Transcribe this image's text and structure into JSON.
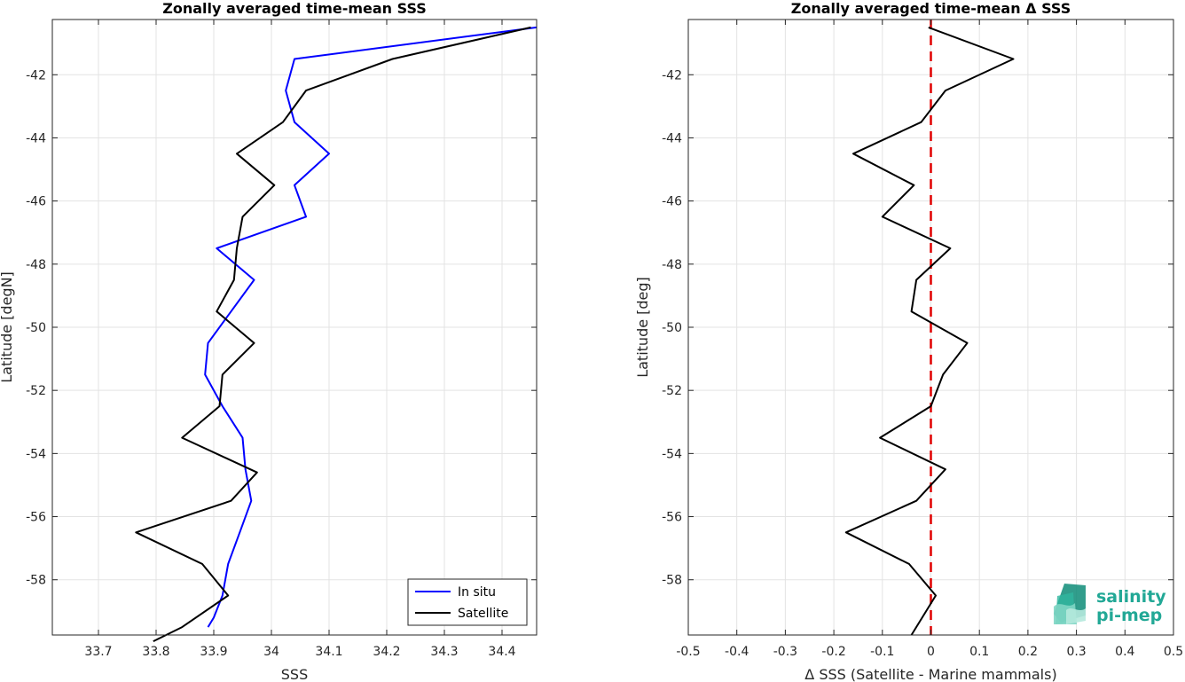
{
  "chart_data": [
    {
      "type": "line",
      "title": "Zonally averaged time-mean SSS",
      "xlabel": "SSS",
      "ylabel": "Latitude [degN]",
      "xlim": [
        33.62,
        34.46
      ],
      "ylim": [
        -59.75,
        -40.25
      ],
      "xticks": [
        33.7,
        33.8,
        33.9,
        34.0,
        34.1,
        34.2,
        34.3,
        34.4
      ],
      "xtick_labels": [
        "33.7",
        "33.8",
        "33.9",
        "34",
        "34.1",
        "34.2",
        "34.3",
        "34.4"
      ],
      "yticks": [
        -42,
        -44,
        -46,
        -48,
        -50,
        -52,
        -54,
        -56,
        -58
      ],
      "ytick_labels": [
        "-42",
        "-44",
        "-46",
        "-48",
        "-50",
        "-52",
        "-54",
        "-56",
        "-58"
      ],
      "grid": true,
      "legend_position": "bottom-right",
      "series": [
        {
          "name": "In situ",
          "color": "#0000ff",
          "x": [
            34.46,
            34.04,
            34.025,
            34.04,
            34.1,
            34.04,
            34.06,
            33.905,
            33.97,
            33.93,
            33.89,
            33.885,
            33.915,
            33.95,
            33.955,
            33.965,
            33.945,
            33.925,
            33.915,
            33.9,
            33.89
          ],
          "y": [
            -40.5,
            -41.5,
            -42.5,
            -43.5,
            -44.5,
            -45.5,
            -46.5,
            -47.5,
            -48.5,
            -49.5,
            -50.5,
            -51.5,
            -52.5,
            -53.5,
            -54.5,
            -55.5,
            -56.5,
            -57.5,
            -58.5,
            -59.2,
            -59.5
          ]
        },
        {
          "name": "Satellite",
          "color": "#000000",
          "x": [
            34.45,
            34.21,
            34.06,
            34.02,
            33.94,
            34.005,
            33.95,
            33.94,
            33.935,
            33.905,
            33.97,
            33.915,
            33.91,
            33.845,
            33.975,
            33.93,
            33.765,
            33.88,
            33.925,
            33.845,
            33.795
          ],
          "y": [
            -40.5,
            -41.5,
            -42.5,
            -43.5,
            -44.5,
            -45.5,
            -46.5,
            -47.5,
            -48.5,
            -49.5,
            -50.5,
            -51.5,
            -52.5,
            -53.5,
            -54.6,
            -55.5,
            -56.5,
            -57.5,
            -58.5,
            -59.5,
            -59.95
          ]
        }
      ]
    },
    {
      "type": "line",
      "title": "Zonally averaged time-mean Δ SSS",
      "xlabel": "Δ SSS (Satellite - Marine mammals)",
      "ylabel": "Latitude [deg]",
      "xlim": [
        -0.5,
        0.5
      ],
      "ylim": [
        -59.75,
        -40.25
      ],
      "xticks": [
        -0.5,
        -0.4,
        -0.3,
        -0.2,
        -0.1,
        0,
        0.1,
        0.2,
        0.3,
        0.4,
        0.5
      ],
      "xtick_labels": [
        "-0.5",
        "-0.4",
        "-0.3",
        "-0.2",
        "-0.1",
        "0",
        "0.1",
        "0.2",
        "0.3",
        "0.4",
        "0.5"
      ],
      "yticks": [
        -42,
        -44,
        -46,
        -48,
        -50,
        -52,
        -54,
        -56,
        -58
      ],
      "ytick_labels": [
        "-42",
        "-44",
        "-46",
        "-48",
        "-50",
        "-52",
        "-54",
        "-56",
        "-58"
      ],
      "grid": true,
      "zero_line": {
        "x": 0,
        "color": "#e00000",
        "style": "dashed"
      },
      "series": [
        {
          "color": "#000000",
          "x": [
            -0.005,
            0.17,
            0.03,
            -0.02,
            -0.16,
            -0.035,
            -0.1,
            0.04,
            -0.03,
            -0.04,
            0.075,
            0.025,
            0.0,
            -0.105,
            0.03,
            -0.03,
            -0.175,
            -0.045,
            0.01,
            -0.04
          ],
          "y": [
            -40.5,
            -41.5,
            -42.5,
            -43.5,
            -44.5,
            -45.5,
            -46.5,
            -47.5,
            -48.5,
            -49.5,
            -50.5,
            -51.5,
            -52.5,
            -53.5,
            -54.5,
            -55.5,
            -56.5,
            -57.5,
            -58.5,
            -59.75
          ]
        }
      ]
    }
  ],
  "logo": {
    "line1": "salinity",
    "line2": "pi-mep",
    "color": "#22a896"
  }
}
